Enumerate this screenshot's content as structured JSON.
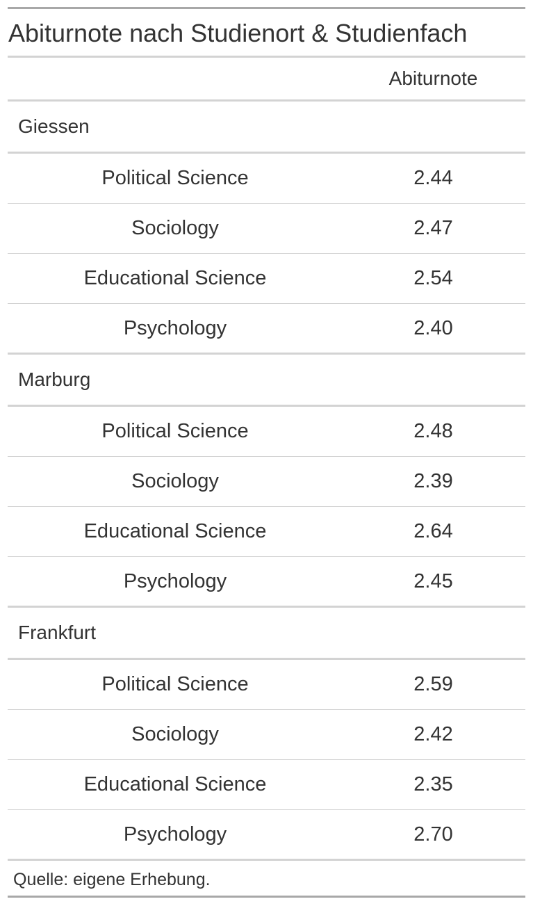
{
  "table": {
    "title": "Abiturnote nach Studienort & Studienfach",
    "column_header": "Abiturnote",
    "groups": [
      {
        "name": "Giessen",
        "rows": [
          {
            "subject": "Political Science",
            "value": "2.44"
          },
          {
            "subject": "Sociology",
            "value": "2.47"
          },
          {
            "subject": "Educational Science",
            "value": "2.54"
          },
          {
            "subject": "Psychology",
            "value": "2.40"
          }
        ]
      },
      {
        "name": "Marburg",
        "rows": [
          {
            "subject": "Political Science",
            "value": "2.48"
          },
          {
            "subject": "Sociology",
            "value": "2.39"
          },
          {
            "subject": "Educational Science",
            "value": "2.64"
          },
          {
            "subject": "Psychology",
            "value": "2.45"
          }
        ]
      },
      {
        "name": "Frankfurt",
        "rows": [
          {
            "subject": "Political Science",
            "value": "2.59"
          },
          {
            "subject": "Sociology",
            "value": "2.42"
          },
          {
            "subject": "Educational Science",
            "value": "2.35"
          },
          {
            "subject": "Psychology",
            "value": "2.70"
          }
        ]
      }
    ],
    "source_note": "Quelle: eigene Erhebung."
  }
}
